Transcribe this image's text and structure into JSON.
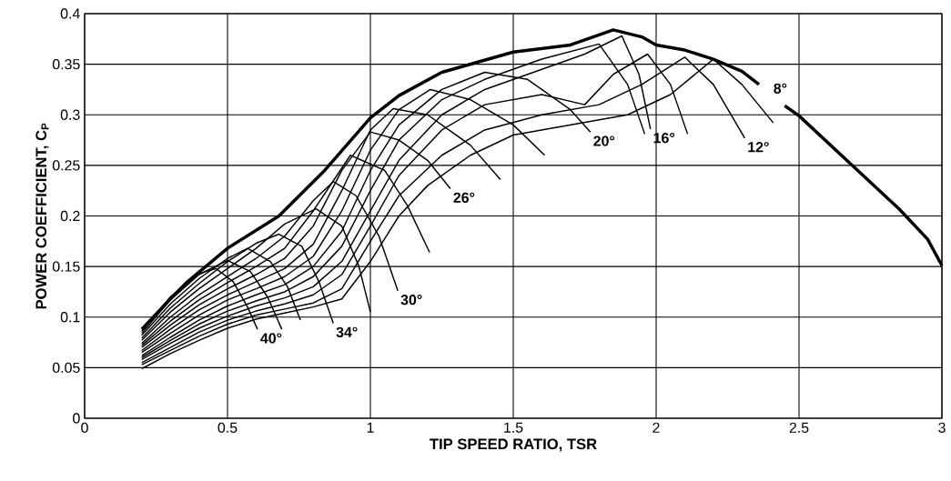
{
  "chart_data": {
    "type": "line",
    "xlabel": "TIP SPEED RATIO, TSR",
    "ylabel": "POWER COEFFICIENT, C$_{P}$",
    "xlim": [
      0,
      3
    ],
    "xticks": [
      0,
      0.5,
      1,
      1.5,
      2,
      2.5,
      3
    ],
    "ylim": [
      0,
      0.4
    ],
    "yticks": [
      0,
      0.05,
      0.1,
      0.15,
      0.2,
      0.25,
      0.3,
      0.35,
      0.4
    ],
    "grid": true,
    "marker": "none",
    "line_style": "solid",
    "series": [
      {
        "name": "8°",
        "color": "#000000",
        "x": [
          0.2,
          0.3,
          0.36,
          0.5,
          0.68,
          0.84,
          1.0,
          1.1,
          1.25,
          1.5,
          1.7,
          1.85,
          1.95,
          2.0,
          2.1,
          2.2,
          2.3,
          2.36,
          2.4,
          2.45,
          2.5,
          2.69,
          2.85,
          2.95,
          3.0
        ],
        "values": [
          0.088,
          0.118,
          0.135,
          0.168,
          0.2,
          0.245,
          0.297,
          0.319,
          0.342,
          0.362,
          0.369,
          0.384,
          0.377,
          0.369,
          0.364,
          0.355,
          0.343,
          0.33,
          null,
          0.309,
          0.299,
          0.249,
          0.207,
          0.177,
          0.151
        ]
      },
      {
        "name": "40°",
        "color": "#000000",
        "x": [
          0.2,
          0.3,
          0.4,
          0.46,
          0.52,
          0.57,
          0.605
        ],
        "values": [
          0.086,
          0.12,
          0.143,
          0.148,
          0.135,
          0.11,
          0.088
        ]
      },
      {
        "color": "#000000",
        "x": [
          0.2,
          0.3,
          0.4,
          0.5,
          0.58,
          0.64,
          0.69
        ],
        "values": [
          0.084,
          0.117,
          0.142,
          0.156,
          0.145,
          0.12,
          0.088
        ]
      },
      {
        "color": "#000000",
        "x": [
          0.2,
          0.3,
          0.4,
          0.5,
          0.57,
          0.65,
          0.71,
          0.755
        ],
        "values": [
          0.082,
          0.113,
          0.138,
          0.158,
          0.168,
          0.155,
          0.13,
          0.097
        ]
      },
      {
        "name": "34°",
        "color": "#000000",
        "x": [
          0.2,
          0.3,
          0.4,
          0.5,
          0.6,
          0.68,
          0.76,
          0.82,
          0.87
        ],
        "values": [
          0.079,
          0.109,
          0.133,
          0.155,
          0.173,
          0.182,
          0.17,
          0.135,
          0.094
        ]
      },
      {
        "color": "#000000",
        "x": [
          0.2,
          0.3,
          0.4,
          0.5,
          0.6,
          0.7,
          0.81,
          0.9,
          0.96,
          1.0
        ],
        "values": [
          0.077,
          0.105,
          0.128,
          0.148,
          0.168,
          0.192,
          0.207,
          0.19,
          0.15,
          0.105
        ]
      },
      {
        "name": "30°",
        "color": "#000000",
        "x": [
          0.2,
          0.3,
          0.4,
          0.5,
          0.6,
          0.7,
          0.8,
          0.87,
          0.95,
          1.03,
          1.096
        ],
        "values": [
          0.074,
          0.1,
          0.122,
          0.14,
          0.158,
          0.18,
          0.215,
          0.234,
          0.22,
          0.18,
          0.126
        ]
      },
      {
        "color": "#000000",
        "x": [
          0.2,
          0.3,
          0.4,
          0.5,
          0.6,
          0.7,
          0.8,
          0.93,
          1.05,
          1.13,
          1.207
        ],
        "values": [
          0.072,
          0.096,
          0.117,
          0.134,
          0.15,
          0.168,
          0.205,
          0.26,
          0.245,
          0.21,
          0.164
        ]
      },
      {
        "name": "26°",
        "color": "#000000",
        "x": [
          0.2,
          0.3,
          0.4,
          0.5,
          0.6,
          0.7,
          0.8,
          0.9,
          1.0,
          1.1,
          1.2,
          1.28
        ],
        "values": [
          0.07,
          0.092,
          0.112,
          0.128,
          0.142,
          0.158,
          0.19,
          0.245,
          0.283,
          0.275,
          0.255,
          0.227
        ]
      },
      {
        "color": "#000000",
        "x": [
          0.2,
          0.3,
          0.4,
          0.5,
          0.6,
          0.7,
          0.8,
          0.9,
          1.0,
          1.08,
          1.2,
          1.35,
          1.455
        ],
        "values": [
          0.067,
          0.088,
          0.107,
          0.122,
          0.135,
          0.148,
          0.172,
          0.225,
          0.285,
          0.306,
          0.3,
          0.27,
          0.236
        ]
      },
      {
        "color": "#000000",
        "x": [
          0.2,
          0.3,
          0.4,
          0.5,
          0.6,
          0.7,
          0.8,
          0.9,
          1.0,
          1.1,
          1.21,
          1.35,
          1.5,
          1.61
        ],
        "values": [
          0.065,
          0.084,
          0.102,
          0.117,
          0.128,
          0.14,
          0.16,
          0.205,
          0.265,
          0.305,
          0.325,
          0.315,
          0.29,
          0.26
        ]
      },
      {
        "name": "20°",
        "color": "#000000",
        "x": [
          0.2,
          0.3,
          0.4,
          0.5,
          0.6,
          0.7,
          0.8,
          0.9,
          1.0,
          1.1,
          1.25,
          1.4,
          1.55,
          1.7,
          1.77
        ],
        "values": [
          0.062,
          0.08,
          0.097,
          0.111,
          0.122,
          0.132,
          0.15,
          0.185,
          0.245,
          0.29,
          0.325,
          0.342,
          0.335,
          0.305,
          0.283
        ]
      },
      {
        "color": "#000000",
        "x": [
          0.2,
          0.3,
          0.4,
          0.5,
          0.6,
          0.7,
          0.8,
          0.9,
          1.0,
          1.1,
          1.25,
          1.4,
          1.6,
          1.8,
          1.9,
          1.96
        ],
        "values": [
          0.06,
          0.077,
          0.093,
          0.106,
          0.116,
          0.125,
          0.14,
          0.17,
          0.225,
          0.275,
          0.315,
          0.335,
          0.355,
          0.37,
          0.33,
          0.281
        ]
      },
      {
        "name": "16°",
        "color": "#000000",
        "x": [
          0.2,
          0.3,
          0.4,
          0.5,
          0.6,
          0.7,
          0.8,
          0.9,
          1.0,
          1.1,
          1.25,
          1.4,
          1.6,
          1.75,
          1.88,
          1.94,
          1.98
        ],
        "values": [
          0.058,
          0.074,
          0.089,
          0.101,
          0.111,
          0.119,
          0.13,
          0.155,
          0.205,
          0.255,
          0.3,
          0.325,
          0.345,
          0.36,
          0.378,
          0.34,
          0.286
        ]
      },
      {
        "color": "#000000",
        "x": [
          0.2,
          0.3,
          0.4,
          0.5,
          0.6,
          0.7,
          0.8,
          0.9,
          1.0,
          1.1,
          1.25,
          1.4,
          1.6,
          1.75,
          1.85,
          1.97,
          2.05,
          2.11
        ],
        "values": [
          0.055,
          0.07,
          0.085,
          0.097,
          0.106,
          0.113,
          0.122,
          0.142,
          0.19,
          0.24,
          0.285,
          0.31,
          0.32,
          0.31,
          0.34,
          0.36,
          0.33,
          0.281
        ]
      },
      {
        "name": "12°",
        "color": "#000000",
        "x": [
          0.2,
          0.3,
          0.4,
          0.5,
          0.6,
          0.7,
          0.8,
          0.9,
          1.0,
          1.1,
          1.25,
          1.4,
          1.6,
          1.8,
          1.95,
          2.1,
          2.2,
          2.31
        ],
        "values": [
          0.053,
          0.067,
          0.081,
          0.093,
          0.102,
          0.108,
          0.114,
          0.128,
          0.175,
          0.22,
          0.26,
          0.285,
          0.3,
          0.31,
          0.33,
          0.357,
          0.33,
          0.277
        ]
      },
      {
        "color": "#000000",
        "x": [
          0.2,
          0.3,
          0.4,
          0.5,
          0.6,
          0.7,
          0.8,
          0.9,
          1.0,
          1.1,
          1.2,
          1.35,
          1.5,
          1.7,
          1.9,
          2.05,
          2.2,
          2.3,
          2.41
        ],
        "values": [
          0.049,
          0.064,
          0.077,
          0.089,
          0.098,
          0.104,
          0.11,
          0.118,
          0.155,
          0.2,
          0.23,
          0.26,
          0.28,
          0.29,
          0.3,
          0.32,
          0.355,
          0.33,
          0.292
        ]
      }
    ]
  }
}
